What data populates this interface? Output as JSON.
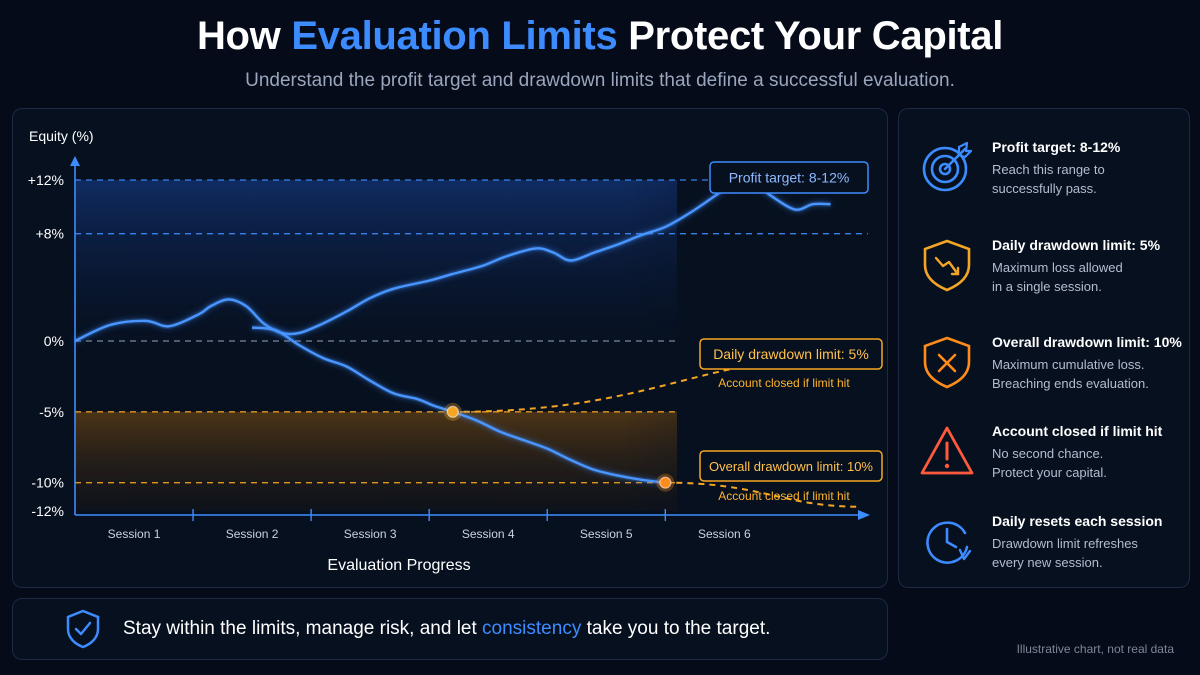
{
  "header": {
    "title_pre": "How",
    "title_accent": "Evaluation Limits",
    "title_post": "Protect Your Capital",
    "subtitle": "Understand the profit target and drawdown limits that define a successful evaluation."
  },
  "chart_data": {
    "type": "line",
    "ylabel": "Equity (%)",
    "xlabel": "Evaluation Progress",
    "categories": [
      "Session 1",
      "Session 2",
      "Session 3",
      "Session 4",
      "Session 5",
      "Session 6"
    ],
    "y_ticks": [
      {
        "value": 12,
        "label": "+12%"
      },
      {
        "value": 8,
        "label": "+8%"
      },
      {
        "value": 0,
        "label": "0%"
      },
      {
        "value": -5,
        "label": "-5%"
      },
      {
        "value": -10,
        "label": "-10%"
      },
      {
        "value": -12,
        "label": "-12%"
      }
    ],
    "ylim": [
      -12,
      12
    ],
    "xlim": [
      0,
      6.7
    ],
    "series": [
      {
        "values": [
          [
            0,
            0
          ],
          [
            0.3,
            1.2
          ],
          [
            0.6,
            1.5
          ],
          [
            0.8,
            1.1
          ],
          [
            1.05,
            2.0
          ],
          [
            1.15,
            2.6
          ],
          [
            1.3,
            3.1
          ],
          [
            1.45,
            2.6
          ],
          [
            1.6,
            1.3
          ],
          [
            1.75,
            0.6
          ],
          [
            1.9,
            0.6
          ],
          [
            2.1,
            1.3
          ],
          [
            2.3,
            2.2
          ],
          [
            2.5,
            3.2
          ],
          [
            2.7,
            3.9
          ],
          [
            3.0,
            4.5
          ],
          [
            3.2,
            5.0
          ],
          [
            3.45,
            5.6
          ],
          [
            3.65,
            6.3
          ],
          [
            3.9,
            6.9
          ],
          [
            4.05,
            6.6
          ],
          [
            4.2,
            6.0
          ],
          [
            4.4,
            6.6
          ],
          [
            4.6,
            7.2
          ],
          [
            4.8,
            7.9
          ],
          [
            5.0,
            8.5
          ],
          [
            5.2,
            9.5
          ],
          [
            5.45,
            11.0
          ],
          [
            5.6,
            12.0
          ],
          [
            5.75,
            11.8
          ],
          [
            5.9,
            10.8
          ],
          [
            6.1,
            9.8
          ],
          [
            6.25,
            10.2
          ],
          [
            6.4,
            10.2
          ]
        ]
      },
      {
        "values": [
          [
            1.5,
            1.0
          ],
          [
            1.7,
            0.8
          ],
          [
            1.9,
            -0.3
          ],
          [
            2.1,
            -1.2
          ],
          [
            2.3,
            -1.8
          ],
          [
            2.5,
            -2.8
          ],
          [
            2.7,
            -3.7
          ],
          [
            2.9,
            -4.1
          ],
          [
            3.05,
            -4.6
          ],
          [
            3.2,
            -5.0
          ],
          [
            3.4,
            -5.6
          ],
          [
            3.6,
            -6.4
          ],
          [
            3.8,
            -7.0
          ],
          [
            4.0,
            -7.6
          ],
          [
            4.2,
            -8.4
          ],
          [
            4.4,
            -9.1
          ],
          [
            4.6,
            -9.5
          ],
          [
            4.8,
            -9.8
          ],
          [
            5.0,
            -10.0
          ]
        ]
      }
    ],
    "markers": [
      {
        "x": 5.6,
        "y": 12,
        "color": "#35e07a"
      },
      {
        "x": 3.2,
        "y": -5,
        "color": "#f5a524"
      },
      {
        "x": 5.0,
        "y": -10,
        "color": "#ff8c1a"
      }
    ],
    "limit_curves": [
      {
        "from": [
          3.2,
          -5
        ],
        "to": [
          6.7,
          -1
        ]
      },
      {
        "from": [
          5.0,
          -10
        ],
        "to": [
          6.7,
          -11.7
        ]
      }
    ],
    "reference_lines": [
      {
        "y": 12,
        "color": "#3d8cff"
      },
      {
        "y": 8,
        "color": "#3d8cff"
      },
      {
        "y": 0,
        "color": "#8a94a8"
      },
      {
        "y": -5,
        "color": "#f5a524"
      },
      {
        "y": -10,
        "color": "#f5a524"
      }
    ],
    "annotations": {
      "profit_target": "Profit target: 8-12%",
      "daily_limit": "Daily drawdown limit: 5%",
      "daily_note": "Account closed if limit hit",
      "overall_limit": "Overall drawdown limit: 10%",
      "overall_note": "Account closed if limit hit"
    },
    "colors": {
      "equity": "#3d8cff",
      "target": "#3d8cff",
      "drawdown": "#f5a524"
    }
  },
  "sidebar": {
    "items": [
      {
        "icon": "target-icon",
        "color": "#3d8cff",
        "title": "Profit target: 8-12%",
        "desc_1": "Reach this range to",
        "desc_2": "successfully pass."
      },
      {
        "icon": "shield-drawdown-icon",
        "color": "#f5a524",
        "title": "Daily drawdown limit: 5%",
        "desc_1": "Maximum loss allowed",
        "desc_2": "in a single session."
      },
      {
        "icon": "shield-x-icon",
        "color": "#ff8c1a",
        "title": "Overall drawdown limit: 10%",
        "desc_1": "Maximum cumulative loss.",
        "desc_2": "Breaching ends evaluation."
      },
      {
        "icon": "warning-icon",
        "color": "#ff5a3c",
        "title": "Account closed if limit hit",
        "desc_1": "No second chance.",
        "desc_2": "Protect your capital."
      },
      {
        "icon": "clock-reset-icon",
        "color": "#3d8cff",
        "title": "Daily resets each session",
        "desc_1": "Drawdown limit refreshes",
        "desc_2": "every new session."
      }
    ]
  },
  "footer": {
    "text_pre": "Stay within the limits, manage risk, and let",
    "text_highlight": "consistency",
    "text_post": "take you to the target.",
    "note": "Illustrative chart, not real data"
  }
}
